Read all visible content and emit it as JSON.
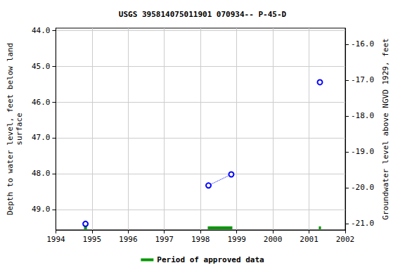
{
  "chart_data": {
    "type": "line",
    "title": "USGS 395814075011901 070934-- P-45-D",
    "ylabel": "Depth to water level, feet below land\nsurface",
    "y2label": "Groundwater level above NGVD 1929, feet",
    "x": [
      1994.82,
      1994.82,
      1998.22,
      1998.85,
      1998.85,
      2001.3
    ],
    "series": [
      {
        "name": "Depth to water level",
        "color": "#0000ff",
        "marker": "circle",
        "line_style": "dotted",
        "values": [
          49.4,
          null,
          48.33,
          48.02,
          null,
          45.45
        ]
      },
      {
        "name": "Period of approved data",
        "color": "#009900",
        "type": "period",
        "periods": [
          [
            1994.78,
            1994.86
          ],
          [
            1998.2,
            1998.88
          ],
          [
            2001.27,
            2001.33
          ]
        ]
      }
    ],
    "xlim": [
      1994,
      2002
    ],
    "xticks": [
      1994,
      1995,
      1996,
      1997,
      1998,
      1999,
      2000,
      2001,
      2002
    ],
    "ylim": [
      43.94,
      49.57
    ],
    "yticks": [
      {
        "value": 44,
        "label": "44.0"
      },
      {
        "value": 45,
        "label": "45.0"
      },
      {
        "value": 46,
        "label": "46.0"
      },
      {
        "value": 47,
        "label": "47.0"
      },
      {
        "value": 48,
        "label": "48.0"
      },
      {
        "value": 49,
        "label": "49.0"
      }
    ],
    "y2lim": [
      -15.55,
      -21.18
    ],
    "y2ticks": [
      {
        "value": -16,
        "label": "-16.0"
      },
      {
        "value": -17,
        "label": "-17.0"
      },
      {
        "value": -18,
        "label": "-18.0"
      },
      {
        "value": -19,
        "label": "-19.0"
      },
      {
        "value": -20,
        "label": "-20.0"
      },
      {
        "value": -21,
        "label": "-21.0"
      }
    ],
    "grid": true,
    "legend": "bottom"
  }
}
